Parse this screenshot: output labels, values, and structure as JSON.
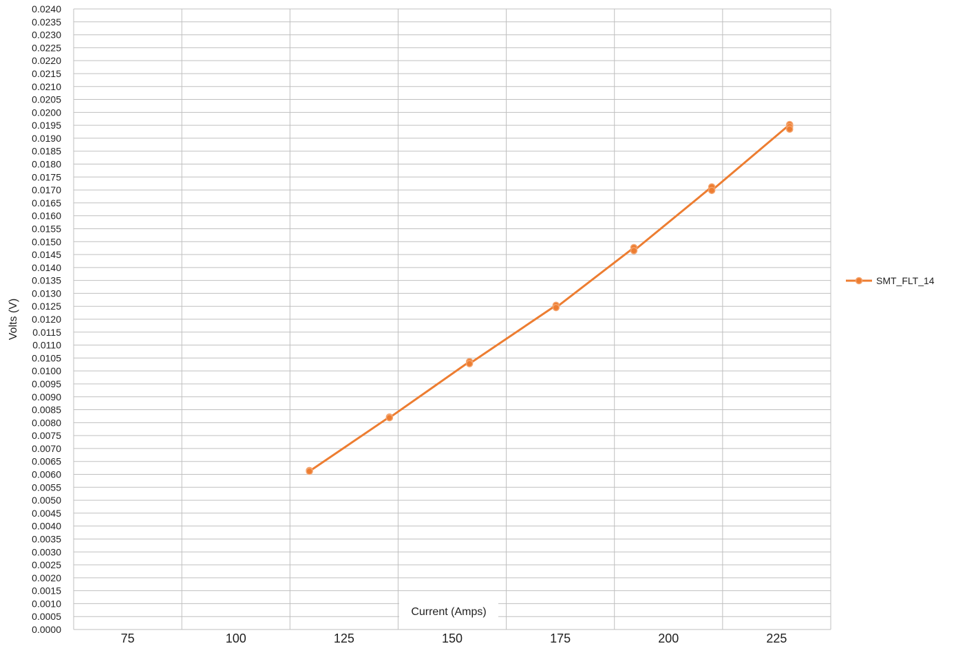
{
  "chart_data": {
    "type": "line",
    "xlabel": "Current (Amps)",
    "ylabel": "Volts (V)",
    "xlim": [
      62.5,
      237.5
    ],
    "ylim": [
      0,
      0.024
    ],
    "x_ticks": [
      "75",
      "100",
      "125",
      "150",
      "175",
      "200",
      "225"
    ],
    "y_ticks": [
      "0.0000",
      "0.0005",
      "0.0010",
      "0.0015",
      "0.0020",
      "0.0025",
      "0.0030",
      "0.0035",
      "0.0040",
      "0.0045",
      "0.0050",
      "0.0055",
      "0.0060",
      "0.0065",
      "0.0070",
      "0.0075",
      "0.0080",
      "0.0085",
      "0.0090",
      "0.0095",
      "0.0100",
      "0.0105",
      "0.0110",
      "0.0115",
      "0.0120",
      "0.0125",
      "0.0130",
      "0.0135",
      "0.0140",
      "0.0145",
      "0.0150",
      "0.0155",
      "0.0160",
      "0.0165",
      "0.0170",
      "0.0175",
      "0.0180",
      "0.0185",
      "0.0190",
      "0.0195",
      "0.0200",
      "0.0205",
      "0.0210",
      "0.0215",
      "0.0220",
      "0.0225",
      "0.0230",
      "0.0235",
      "0.0240"
    ],
    "grid": true,
    "legend_position": "right",
    "series": [
      {
        "name": "SMT_FLT_14",
        "color": "#ED7D31",
        "points": [
          {
            "x": 117.0,
            "y": 0.00615
          },
          {
            "x": 117.0,
            "y": 0.00612
          },
          {
            "x": 135.5,
            "y": 0.00822
          },
          {
            "x": 135.5,
            "y": 0.00819
          },
          {
            "x": 154.0,
            "y": 0.01036
          },
          {
            "x": 154.0,
            "y": 0.01028
          },
          {
            "x": 174.0,
            "y": 0.01254
          },
          {
            "x": 174.0,
            "y": 0.01245
          },
          {
            "x": 192.0,
            "y": 0.01477
          },
          {
            "x": 192.0,
            "y": 0.01465
          },
          {
            "x": 210.0,
            "y": 0.01712
          },
          {
            "x": 210.0,
            "y": 0.01698
          },
          {
            "x": 228.0,
            "y": 0.01953
          },
          {
            "x": 228.0,
            "y": 0.01945
          },
          {
            "x": 228.0,
            "y": 0.01935
          }
        ]
      }
    ]
  }
}
